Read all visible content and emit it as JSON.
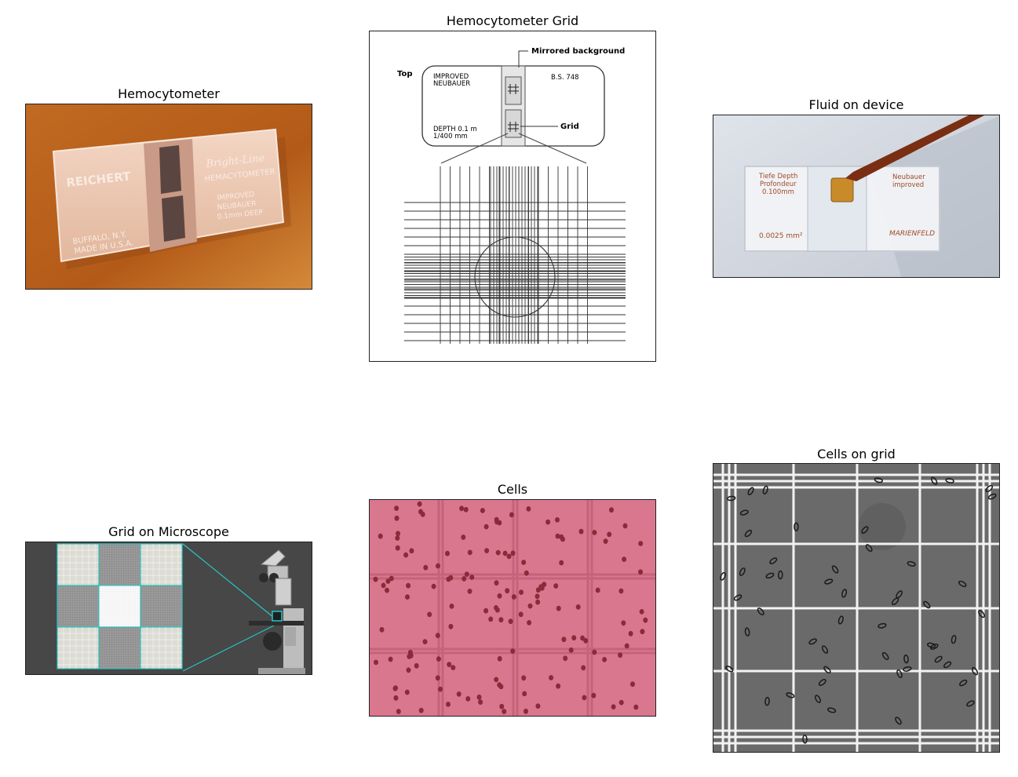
{
  "panels": {
    "hemocytometer": {
      "title": "Hemocytometer",
      "slide_text": {
        "brand": "REICHERT",
        "line1": "BUFFALO, N.Y.",
        "line2": "MADE IN U.S.A.",
        "r1": "Bright-Line",
        "r2": "HEMACYTOMETER",
        "r3": "IMPROVED",
        "r4": "NEUBAUER",
        "r5": "0.1mm DEEP"
      }
    },
    "grid_diagram": {
      "title": "Hemocytometer Grid",
      "labels": {
        "top": "Top",
        "improved": "IMPROVED",
        "neubauer": "NEUBAUER",
        "bs": "B.S. 748",
        "depth": "DEPTH 0.1 m",
        "area": "1/400 mm",
        "mirrored": "Mirrored background",
        "grid": "Grid"
      }
    },
    "fluid": {
      "title": "Fluid on device",
      "slide_text": {
        "l1": "Tiefe  Depth",
        "l2": "Profondeur",
        "l3": "0.100mm",
        "l4": "0.0025 mm²",
        "r1": "Neubauer",
        "r2": "improved",
        "brand": "MARIENFELD"
      }
    },
    "microscope": {
      "title": "Grid on Microscope"
    },
    "cells": {
      "title": "Cells"
    },
    "cells_grid": {
      "title": "Cells on grid"
    }
  },
  "colors": {
    "orange_bg": "#b8621d",
    "pink_bg": "#d9778e",
    "cell": "#8c2a3c",
    "gray_bg": "#6a6a6a",
    "cyan": "#27c6c6"
  }
}
